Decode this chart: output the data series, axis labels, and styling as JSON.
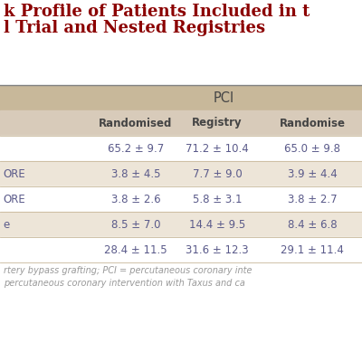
{
  "title_line1": "k Profile of Patients Included in t",
  "title_line2": "l Trial and Nested Registries",
  "title_color": "#8B0000",
  "title_fontsize": 13.0,
  "bg_color": "#FFFFFF",
  "header_bg": "#C8B89A",
  "subheader_bg": "#D8CBBA",
  "row_bg_white": "#FFFFFF",
  "row_bg_light": "#EDE5D8",
  "col_header_group": "PCI",
  "col_headers": [
    "Randomised",
    "Registry",
    "Randomise"
  ],
  "row_labels": [
    "",
    "ORE",
    "ORE",
    "e",
    ""
  ],
  "data": [
    [
      "65.2 ± 9.7",
      "71.2 ± 10.4",
      "65.0 ± 9.8"
    ],
    [
      "3.8 ± 4.5",
      "7.7 ± 9.0",
      "3.9 ± 4.4"
    ],
    [
      "3.8 ± 2.6",
      "5.8 ± 3.1",
      "3.8 ± 2.7"
    ],
    [
      "8.5 ± 7.0",
      "14.4 ± 9.5",
      "8.4 ± 6.8"
    ],
    [
      "28.4 ± 11.5",
      "31.6 ± 12.3",
      "29.1 ± 11.4"
    ]
  ],
  "footer_line1": "rtery bypass grafting; PCI = percutaneous coronary inte",
  "footer_line2": "percutaneous coronary intervention with Taxus and ca",
  "footer_color": "#999999",
  "footer_fontsize": 7.0,
  "data_color": "#5A5A8A",
  "label_color": "#5A5A8A",
  "header_color": "#444444",
  "divider_color": "#808080",
  "row_divider_color": "#C8B89A"
}
